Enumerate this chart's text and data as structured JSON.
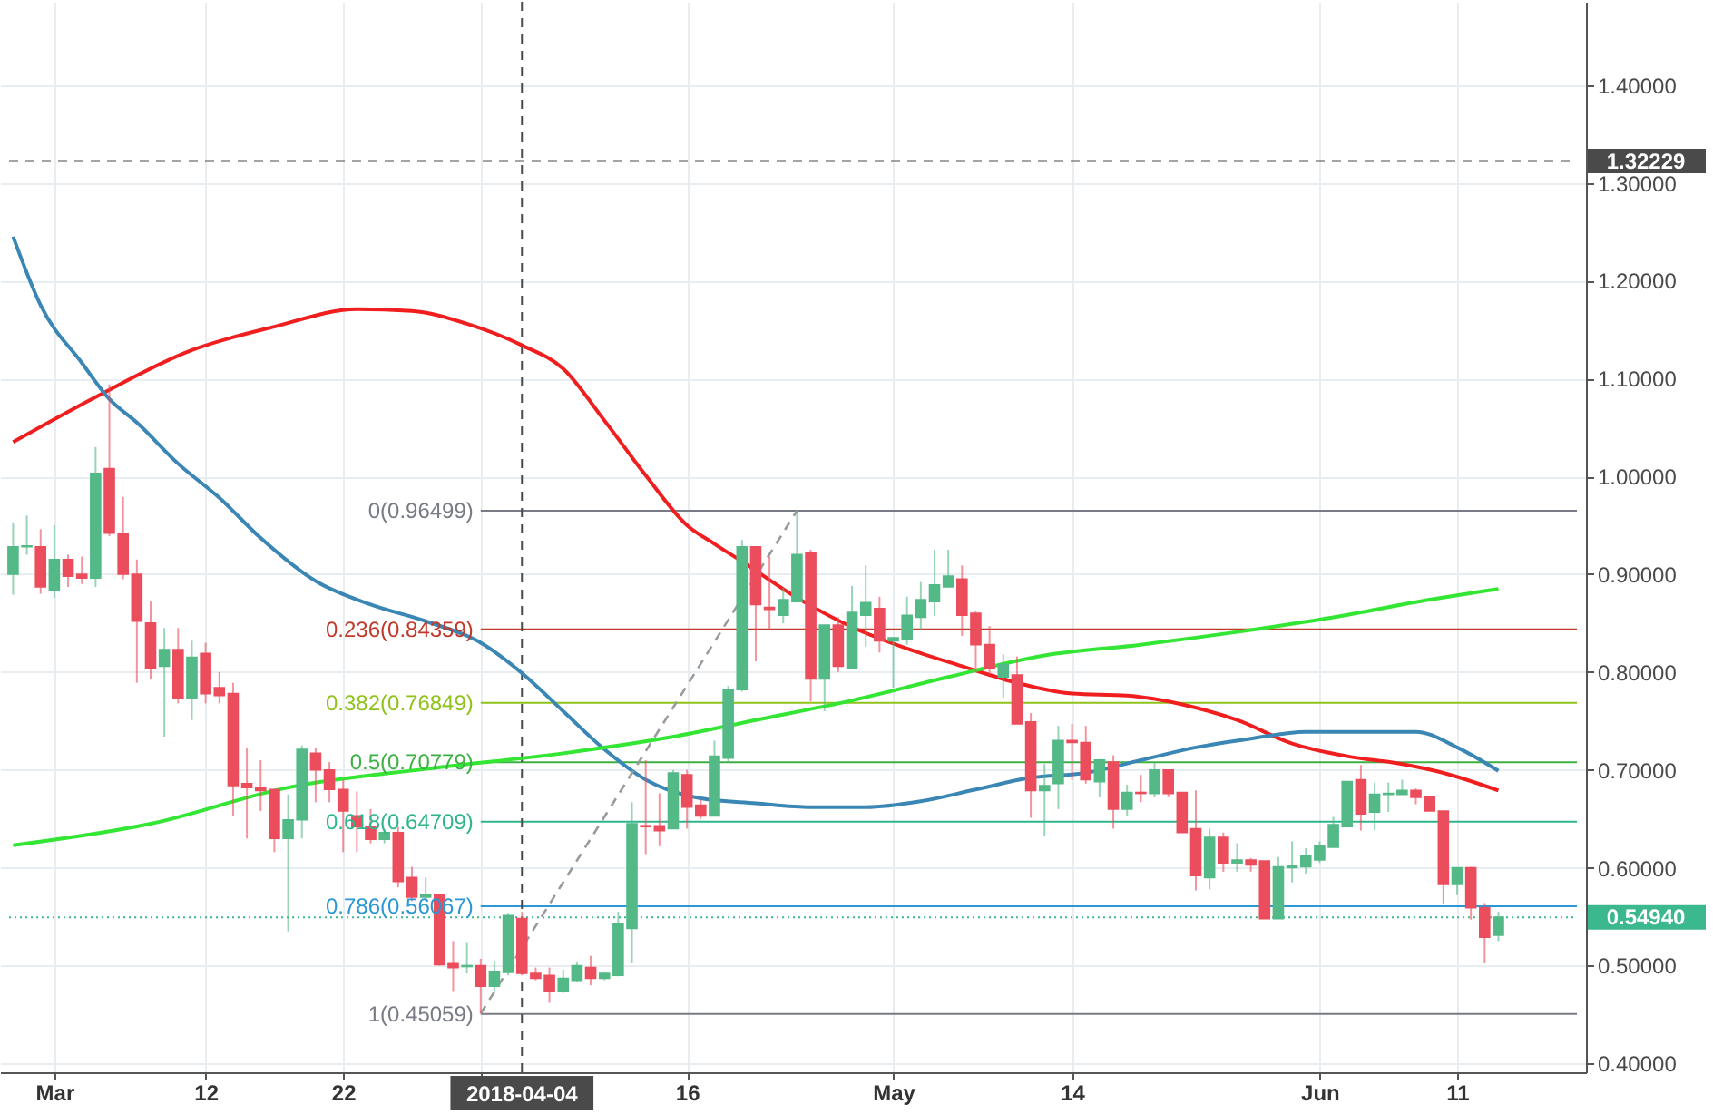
{
  "chart_data": {
    "type": "candlestick",
    "x": [
      "2018-02-26",
      "2018-02-27",
      "2018-02-28",
      "2018-03-01",
      "2018-03-02",
      "2018-03-03",
      "2018-03-04",
      "2018-03-05",
      "2018-03-06",
      "2018-03-07",
      "2018-03-08",
      "2018-03-09",
      "2018-03-10",
      "2018-03-11",
      "2018-03-12",
      "2018-03-13",
      "2018-03-14",
      "2018-03-15",
      "2018-03-16",
      "2018-03-17",
      "2018-03-18",
      "2018-03-19",
      "2018-03-20",
      "2018-03-21",
      "2018-03-22",
      "2018-03-23",
      "2018-03-24",
      "2018-03-25",
      "2018-03-26",
      "2018-03-27",
      "2018-03-28",
      "2018-03-29",
      "2018-03-30",
      "2018-03-31",
      "2018-04-01",
      "2018-04-02",
      "2018-04-03",
      "2018-04-04",
      "2018-04-05",
      "2018-04-06",
      "2018-04-07",
      "2018-04-08",
      "2018-04-09",
      "2018-04-10",
      "2018-04-11",
      "2018-04-12",
      "2018-04-13",
      "2018-04-14",
      "2018-04-15",
      "2018-04-16",
      "2018-04-17",
      "2018-04-18",
      "2018-04-19",
      "2018-04-20",
      "2018-04-21",
      "2018-04-22",
      "2018-04-23",
      "2018-04-24",
      "2018-04-25",
      "2018-04-26",
      "2018-04-27",
      "2018-04-28",
      "2018-04-29",
      "2018-04-30",
      "2018-05-01",
      "2018-05-02",
      "2018-05-03",
      "2018-05-04",
      "2018-05-05",
      "2018-05-06",
      "2018-05-07",
      "2018-05-08",
      "2018-05-09",
      "2018-05-10",
      "2018-05-11",
      "2018-05-12",
      "2018-05-13",
      "2018-05-14",
      "2018-05-15",
      "2018-05-16",
      "2018-05-17",
      "2018-05-18",
      "2018-05-19",
      "2018-05-20",
      "2018-05-21",
      "2018-05-22",
      "2018-05-23",
      "2018-05-24",
      "2018-05-25",
      "2018-05-26",
      "2018-05-27",
      "2018-05-28",
      "2018-05-29",
      "2018-05-30",
      "2018-05-31",
      "2018-06-01",
      "2018-06-02",
      "2018-06-03",
      "2018-06-04",
      "2018-06-05",
      "2018-06-06",
      "2018-06-07",
      "2018-06-08",
      "2018-06-09",
      "2018-06-10",
      "2018-06-11",
      "2018-06-12",
      "2018-06-13",
      "2018-06-14"
    ],
    "ohlc": [
      [
        0.9,
        0.953,
        0.879,
        0.928
      ],
      [
        0.928,
        0.96,
        0.92,
        0.929
      ],
      [
        0.928,
        0.946,
        0.88,
        0.887
      ],
      [
        0.883,
        0.95,
        0.876,
        0.915
      ],
      [
        0.915,
        0.92,
        0.887,
        0.898
      ],
      [
        0.9,
        0.918,
        0.89,
        0.896
      ],
      [
        0.896,
        1.03,
        0.887,
        1.003
      ],
      [
        1.008,
        1.094,
        0.939,
        0.942
      ],
      [
        0.942,
        0.979,
        0.895,
        0.9
      ],
      [
        0.9,
        0.915,
        0.789,
        0.852
      ],
      [
        0.85,
        0.872,
        0.793,
        0.804
      ],
      [
        0.806,
        0.845,
        0.734,
        0.823
      ],
      [
        0.823,
        0.845,
        0.768,
        0.773
      ],
      [
        0.773,
        0.832,
        0.751,
        0.815
      ],
      [
        0.819,
        0.83,
        0.768,
        0.778
      ],
      [
        0.784,
        0.8,
        0.768,
        0.776
      ],
      [
        0.778,
        0.789,
        0.653,
        0.684
      ],
      [
        0.686,
        0.723,
        0.63,
        0.682
      ],
      [
        0.682,
        0.71,
        0.658,
        0.679
      ],
      [
        0.68,
        0.68,
        0.616,
        0.63
      ],
      [
        0.63,
        0.675,
        0.535,
        0.649
      ],
      [
        0.649,
        0.725,
        0.63,
        0.721
      ],
      [
        0.717,
        0.722,
        0.667,
        0.7
      ],
      [
        0.7,
        0.708,
        0.667,
        0.68
      ],
      [
        0.68,
        0.69,
        0.616,
        0.658
      ],
      [
        0.653,
        0.678,
        0.616,
        0.642
      ],
      [
        0.642,
        0.66,
        0.625,
        0.629
      ],
      [
        0.629,
        0.64,
        0.625,
        0.636
      ],
      [
        0.636,
        0.642,
        0.58,
        0.586
      ],
      [
        0.59,
        0.601,
        0.566,
        0.57
      ],
      [
        0.57,
        0.59,
        0.566,
        0.573
      ],
      [
        0.573,
        0.573,
        0.5,
        0.501
      ],
      [
        0.503,
        0.525,
        0.474,
        0.498
      ],
      [
        0.499,
        0.524,
        0.492,
        0.5
      ],
      [
        0.5,
        0.507,
        0.451,
        0.479
      ],
      [
        0.479,
        0.505,
        0.474,
        0.494
      ],
      [
        0.493,
        0.554,
        0.49,
        0.551
      ],
      [
        0.548,
        0.555,
        0.49,
        0.492
      ],
      [
        0.492,
        0.498,
        0.485,
        0.487
      ],
      [
        0.49,
        0.498,
        0.462,
        0.474
      ],
      [
        0.474,
        0.496,
        0.472,
        0.487
      ],
      [
        0.485,
        0.504,
        0.483,
        0.5
      ],
      [
        0.498,
        0.51,
        0.48,
        0.487
      ],
      [
        0.487,
        0.494,
        0.485,
        0.492
      ],
      [
        0.49,
        0.555,
        0.489,
        0.543
      ],
      [
        0.538,
        0.667,
        0.503,
        0.645
      ],
      [
        0.643,
        0.71,
        0.614,
        0.642
      ],
      [
        0.643,
        0.676,
        0.622,
        0.638
      ],
      [
        0.64,
        0.7,
        0.64,
        0.697
      ],
      [
        0.695,
        0.7,
        0.64,
        0.662
      ],
      [
        0.664,
        0.67,
        0.65,
        0.653
      ],
      [
        0.653,
        0.73,
        0.653,
        0.714
      ],
      [
        0.712,
        0.786,
        0.707,
        0.782
      ],
      [
        0.782,
        0.935,
        0.78,
        0.928
      ],
      [
        0.928,
        0.928,
        0.811,
        0.869
      ],
      [
        0.866,
        0.918,
        0.843,
        0.864
      ],
      [
        0.858,
        0.886,
        0.85,
        0.874
      ],
      [
        0.872,
        0.965,
        0.872,
        0.92
      ],
      [
        0.922,
        0.925,
        0.77,
        0.793
      ],
      [
        0.793,
        0.848,
        0.76,
        0.848
      ],
      [
        0.848,
        0.856,
        0.8,
        0.806
      ],
      [
        0.804,
        0.888,
        0.804,
        0.861
      ],
      [
        0.858,
        0.909,
        0.826,
        0.871
      ],
      [
        0.865,
        0.877,
        0.82,
        0.832
      ],
      [
        0.832,
        0.835,
        0.784,
        0.835
      ],
      [
        0.834,
        0.877,
        0.828,
        0.858
      ],
      [
        0.856,
        0.892,
        0.843,
        0.874
      ],
      [
        0.872,
        0.925,
        0.857,
        0.889
      ],
      [
        0.887,
        0.925,
        0.887,
        0.898
      ],
      [
        0.895,
        0.909,
        0.837,
        0.858
      ],
      [
        0.86,
        0.862,
        0.8,
        0.828
      ],
      [
        0.828,
        0.847,
        0.797,
        0.804
      ],
      [
        0.795,
        0.818,
        0.774,
        0.808
      ],
      [
        0.797,
        0.816,
        0.747,
        0.747
      ],
      [
        0.749,
        0.758,
        0.651,
        0.679
      ],
      [
        0.679,
        0.706,
        0.632,
        0.684
      ],
      [
        0.686,
        0.745,
        0.66,
        0.73
      ],
      [
        0.73,
        0.747,
        0.69,
        0.728
      ],
      [
        0.728,
        0.745,
        0.686,
        0.69
      ],
      [
        0.688,
        0.711,
        0.672,
        0.71
      ],
      [
        0.708,
        0.715,
        0.64,
        0.66
      ],
      [
        0.66,
        0.685,
        0.653,
        0.677
      ],
      [
        0.677,
        0.695,
        0.667,
        0.676
      ],
      [
        0.676,
        0.708,
        0.672,
        0.7
      ],
      [
        0.7,
        0.7,
        0.672,
        0.676
      ],
      [
        0.677,
        0.677,
        0.636,
        0.636
      ],
      [
        0.64,
        0.679,
        0.577,
        0.592
      ],
      [
        0.59,
        0.64,
        0.578,
        0.631
      ],
      [
        0.631,
        0.636,
        0.596,
        0.605
      ],
      [
        0.605,
        0.625,
        0.596,
        0.608
      ],
      [
        0.608,
        0.61,
        0.596,
        0.603
      ],
      [
        0.607,
        0.607,
        0.548,
        0.548
      ],
      [
        0.548,
        0.611,
        0.548,
        0.601
      ],
      [
        0.6,
        0.627,
        0.585,
        0.602
      ],
      [
        0.601,
        0.62,
        0.594,
        0.612
      ],
      [
        0.608,
        0.627,
        0.605,
        0.622
      ],
      [
        0.621,
        0.652,
        0.621,
        0.644
      ],
      [
        0.642,
        0.688,
        0.642,
        0.688
      ],
      [
        0.69,
        0.705,
        0.638,
        0.655
      ],
      [
        0.657,
        0.687,
        0.638,
        0.675
      ],
      [
        0.675,
        0.687,
        0.657,
        0.676
      ],
      [
        0.675,
        0.69,
        0.675,
        0.679
      ],
      [
        0.679,
        0.681,
        0.665,
        0.672
      ],
      [
        0.673,
        0.673,
        0.658,
        0.658
      ],
      [
        0.658,
        0.658,
        0.563,
        0.583
      ],
      [
        0.583,
        0.6,
        0.572,
        0.6
      ],
      [
        0.6,
        0.601,
        0.547,
        0.559
      ],
      [
        0.559,
        0.564,
        0.503,
        0.529
      ],
      [
        0.531,
        0.555,
        0.525,
        0.5494
      ]
    ],
    "colors": [
      "#53b987",
      "#53b987",
      "#eb4d5c",
      "#53b987",
      "#eb4d5c",
      "#eb4d5c",
      "#53b987",
      "#eb4d5c",
      "#eb4d5c",
      "#eb4d5c",
      "#eb4d5c",
      "#53b987",
      "#eb4d5c",
      "#53b987",
      "#eb4d5c",
      "#eb4d5c",
      "#eb4d5c",
      "#eb4d5c",
      "#eb4d5c",
      "#eb4d5c",
      "#53b987",
      "#53b987",
      "#eb4d5c",
      "#eb4d5c",
      "#eb4d5c",
      "#eb4d5c",
      "#eb4d5c",
      "#53b987",
      "#eb4d5c",
      "#eb4d5c",
      "#53b987",
      "#eb4d5c",
      "#eb4d5c",
      "#53b987",
      "#eb4d5c",
      "#53b987",
      "#53b987",
      "#eb4d5c",
      "#eb4d5c",
      "#eb4d5c",
      "#53b987",
      "#53b987",
      "#eb4d5c",
      "#53b987",
      "#53b987",
      "#53b987",
      "#eb4d5c",
      "#eb4d5c",
      "#53b987",
      "#eb4d5c",
      "#eb4d5c",
      "#53b987",
      "#53b987",
      "#53b987",
      "#eb4d5c",
      "#eb4d5c",
      "#53b987",
      "#53b987",
      "#eb4d5c",
      "#53b987",
      "#eb4d5c",
      "#53b987",
      "#53b987",
      "#eb4d5c",
      "#53b987",
      "#53b987",
      "#53b987",
      "#53b987",
      "#53b987",
      "#eb4d5c",
      "#eb4d5c",
      "#eb4d5c",
      "#53b987",
      "#eb4d5c",
      "#eb4d5c",
      "#53b987",
      "#53b987",
      "#eb4d5c",
      "#eb4d5c",
      "#53b987",
      "#eb4d5c",
      "#53b987",
      "#eb4d5c",
      "#53b987",
      "#eb4d5c",
      "#eb4d5c",
      "#eb4d5c",
      "#53b987",
      "#eb4d5c",
      "#53b987",
      "#eb4d5c",
      "#eb4d5c",
      "#53b987",
      "#53b987",
      "#53b987",
      "#53b987",
      "#53b987",
      "#53b987",
      "#eb4d5c",
      "#53b987",
      "#53b987",
      "#53b987",
      "#eb4d5c",
      "#eb4d5c",
      "#eb4d5c",
      "#53b987",
      "#eb4d5c",
      "#eb4d5c",
      "#53b987"
    ],
    "series": [
      {
        "type": "line",
        "color": "#f01e1e",
        "x": [
          "2018-02-26",
          "2018-03-04",
          "2018-03-11",
          "2018-03-17",
          "2018-03-23",
          "2018-03-27",
          "2018-03-31",
          "2018-04-04",
          "2018-04-07",
          "2018-04-10",
          "2018-04-13",
          "2018-04-16",
          "2018-04-18",
          "2018-04-20",
          "2018-04-24",
          "2018-04-28",
          "2018-05-02",
          "2018-05-06",
          "2018-05-10",
          "2018-05-14",
          "2018-05-18",
          "2018-05-22",
          "2018-05-26",
          "2018-05-30",
          "2018-06-03",
          "2018-06-07",
          "2018-06-10",
          "2018-06-14"
        ],
        "values": [
          1.035,
          1.081,
          1.129,
          1.153,
          1.171,
          1.169,
          1.156,
          1.134,
          1.11,
          1.057,
          1.001,
          0.95,
          0.931,
          0.913,
          0.876,
          0.846,
          0.824,
          0.806,
          0.789,
          0.778,
          0.776,
          0.767,
          0.751,
          0.727,
          0.714,
          0.706,
          0.697,
          0.679
        ]
      },
      {
        "type": "line",
        "color": "#3a86b4",
        "x": [
          "2018-02-26",
          "2018-02-28",
          "2018-03-03",
          "2018-03-05",
          "2018-03-07",
          "2018-03-10",
          "2018-03-13",
          "2018-03-16",
          "2018-03-20",
          "2018-03-24",
          "2018-03-28",
          "2018-04-01",
          "2018-04-04",
          "2018-04-07",
          "2018-04-10",
          "2018-04-13",
          "2018-04-17",
          "2018-04-21",
          "2018-04-25",
          "2018-04-29",
          "2018-05-03",
          "2018-05-07",
          "2018-05-11",
          "2018-05-15",
          "2018-05-19",
          "2018-05-23",
          "2018-05-27",
          "2018-05-31",
          "2018-06-04",
          "2018-06-08",
          "2018-06-11",
          "2018-06-14"
        ],
        "values": [
          1.245,
          1.175,
          1.116,
          1.079,
          1.055,
          1.013,
          0.978,
          0.937,
          0.893,
          0.869,
          0.852,
          0.83,
          0.799,
          0.76,
          0.721,
          0.69,
          0.671,
          0.666,
          0.662,
          0.662,
          0.668,
          0.68,
          0.692,
          0.697,
          0.71,
          0.723,
          0.732,
          0.739,
          0.739,
          0.739,
          0.723,
          0.699
        ]
      },
      {
        "type": "line",
        "color": "#33e633",
        "x": [
          "2018-02-26",
          "2018-03-08",
          "2018-03-18",
          "2018-03-28",
          "2018-04-07",
          "2018-04-15",
          "2018-04-21",
          "2018-04-28",
          "2018-05-05",
          "2018-05-12",
          "2018-05-19",
          "2018-05-26",
          "2018-06-02",
          "2018-06-09",
          "2018-06-14"
        ],
        "values": [
          0.623,
          0.645,
          0.682,
          0.701,
          0.717,
          0.734,
          0.751,
          0.771,
          0.795,
          0.817,
          0.828,
          0.841,
          0.856,
          0.874,
          0.885
        ]
      },
      {
        "type": "line",
        "color": "#9a9a9a",
        "line_style": "dashed",
        "x": [
          "2018-04-01",
          "2018-04-24"
        ],
        "values": [
          0.451,
          0.965
        ]
      }
    ],
    "ref_lines": [
      {
        "axis": "y",
        "value": 0.96499,
        "label": "0(0.96499)",
        "color": "#787b86"
      },
      {
        "axis": "y",
        "value": 0.84359,
        "label": "0.236(0.84359)",
        "color": "#c0392b"
      },
      {
        "axis": "y",
        "value": 0.76849,
        "label": "0.382(0.76849)",
        "color": "#8fc21a"
      },
      {
        "axis": "y",
        "value": 0.70779,
        "label": "0.5(0.70779)",
        "color": "#3cb043"
      },
      {
        "axis": "y",
        "value": 0.64709,
        "label": "0.618(0.64709)",
        "color": "#2fb58c"
      },
      {
        "axis": "y",
        "value": 0.56067,
        "label": "0.786(0.56067)",
        "color": "#2b97d3"
      },
      {
        "axis": "y",
        "value": 0.45059,
        "label": "1(0.45059)",
        "color": "#787b86"
      },
      {
        "axis": "x",
        "value": "2018-04-04",
        "label": "2018-04-04",
        "color": "#4a4a4a",
        "line_style": "dashed"
      },
      {
        "axis": "y",
        "value": 1.32229,
        "label": "1.32229",
        "color": "#4a4a4a",
        "line_style": "dashed"
      },
      {
        "axis": "y",
        "value": 0.5494,
        "label": "0.54940",
        "color": "#3cb88f",
        "line_style": "dotted"
      }
    ],
    "xlim": [
      "2018-02-25T17:00",
      "2018-06-19T17:00"
    ],
    "ylim": [
      0.391,
      1.485
    ],
    "xticks": [
      {
        "value": "2018-03-01",
        "label": "Mar"
      },
      {
        "value": "2018-03-12",
        "label": "12"
      },
      {
        "value": "2018-03-22",
        "label": "22"
      },
      {
        "value": "2018-04-01",
        "label": null
      },
      {
        "value": "2018-04-16",
        "label": "16"
      },
      {
        "value": "2018-05-01",
        "label": "May"
      },
      {
        "value": "2018-05-14",
        "label": "14"
      },
      {
        "value": "2018-06-01",
        "label": "Jun"
      },
      {
        "value": "2018-06-11",
        "label": "11"
      }
    ],
    "yticks": [
      {
        "value": 0.4,
        "label": "0.40000"
      },
      {
        "value": 0.5,
        "label": "0.50000"
      },
      {
        "value": 0.6,
        "label": "0.60000"
      },
      {
        "value": 0.7,
        "label": "0.70000"
      },
      {
        "value": 0.8,
        "label": "0.80000"
      },
      {
        "value": 0.9,
        "label": "0.90000"
      },
      {
        "value": 1.0,
        "label": "1.00000"
      },
      {
        "value": 1.1,
        "label": "1.10000"
      },
      {
        "value": 1.2,
        "label": "1.20000"
      },
      {
        "value": 1.3,
        "label": "1.30000"
      },
      {
        "value": 1.4,
        "label": "1.40000"
      }
    ],
    "grid": true
  }
}
